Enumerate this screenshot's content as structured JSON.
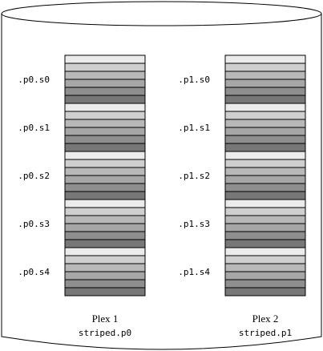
{
  "colors": {
    "outline": "#000000",
    "background": "#ffffff",
    "stripe_shades": [
      "#ebebeb",
      "#cfcfcf",
      "#b8b8b8",
      "#a6a6a6",
      "#8e8e8e",
      "#777777"
    ]
  },
  "plexes": [
    {
      "title": "Plex 1",
      "name": "striped.p0",
      "subdisks": [
        ".p0.s0",
        ".p0.s1",
        ".p0.s2",
        ".p0.s3",
        ".p0.s4"
      ]
    },
    {
      "title": "Plex 2",
      "name": "striped.p1",
      "subdisks": [
        ".p1.s0",
        ".p1.s1",
        ".p1.s2",
        ".p1.s3",
        ".p1.s4"
      ]
    }
  ]
}
